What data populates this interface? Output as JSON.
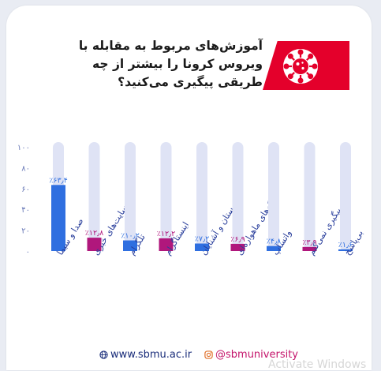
{
  "question": "آموزش‌های مربوط به مقابله با ویروس کرونا را بیشتر از چه طریقی پیگیری می‌کنید؟",
  "icons": {
    "banner": "virus-icon",
    "site": "globe-icon",
    "social": "instagram-icon"
  },
  "colors": {
    "accent_red": "#e4002b",
    "blue_bar": "#2f6fe0",
    "magenta_bar": "#b0177c",
    "track": "#dfe3f5",
    "axis_text": "#6a7ab8"
  },
  "footer": {
    "website": "www.sbmu.ac.ir",
    "instagram": "@sbmuniversity"
  },
  "chart_data": {
    "type": "bar",
    "title": "",
    "xlabel": "",
    "ylabel": "",
    "ylim": [
      0,
      100
    ],
    "yticks": [
      "۰",
      "۲۰",
      "۴۰",
      "۶۰",
      "۸۰",
      "۱۰۰"
    ],
    "categories": [
      "صدا و سیما",
      "سایت‌های خبری",
      "تلگرام",
      "اینستاگرام",
      "دوستان و آشنایان",
      "شبکه‌های ماهواره‌ای",
      "واتساپ",
      "پیگیری نمی‌کنم",
      "بی‌پاسخ"
    ],
    "values": [
      63.4,
      12.8,
      10.2,
      12.2,
      7.2,
      6.9,
      4.8,
      3.9,
      1.6
    ],
    "value_labels": [
      "٪۶۳٫۴",
      "٪۱۲٫۸",
      "٪۱۰٫۲",
      "٪۱۲٫۲",
      "٪۷٫۲",
      "٪۶٫۹",
      "٪۴٫۸",
      "٪۳٫۹",
      "٪۱٫۶"
    ],
    "bar_colors": [
      "#2f6fe0",
      "#b0177c",
      "#2f6fe0",
      "#b0177c",
      "#2f6fe0",
      "#b0177c",
      "#2f6fe0",
      "#b0177c",
      "#2f6fe0"
    ],
    "legend": "none",
    "grid": false
  }
}
